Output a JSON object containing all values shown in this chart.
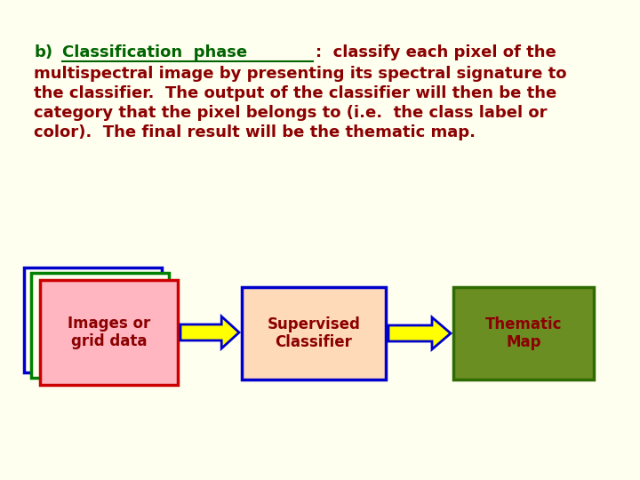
{
  "background_color": "#FFFFF0",
  "text_color": "#8B0000",
  "green_text_color": "#006400",
  "box1_label": "Images or\ngrid data",
  "box2_label": "Supervised\nClassifier",
  "box3_label": "Thematic\nMap",
  "box1_fill": "#FFB6C1",
  "box2_fill": "#FFDAB9",
  "box3_fill": "#6B8E23",
  "box1_edge": "#CC0000",
  "box2_edge": "#0000CC",
  "box3_edge": "#2E6B00",
  "stacked_colors": [
    "#0000CC",
    "#008000",
    "#CC0000"
  ],
  "arrow_color": "#FFFF00",
  "arrow_edge_color": "#0000CC",
  "box_text_color": "#8B0000",
  "box3_text_color": "#8B0000",
  "body_lines": [
    "multispectral image by presenting its spectral signature to",
    "the classifier.  The output of the classifier will then be the",
    "category that the pixel belongs to (i.e.  the class label or",
    "color).  The final result will be the thematic map."
  ]
}
